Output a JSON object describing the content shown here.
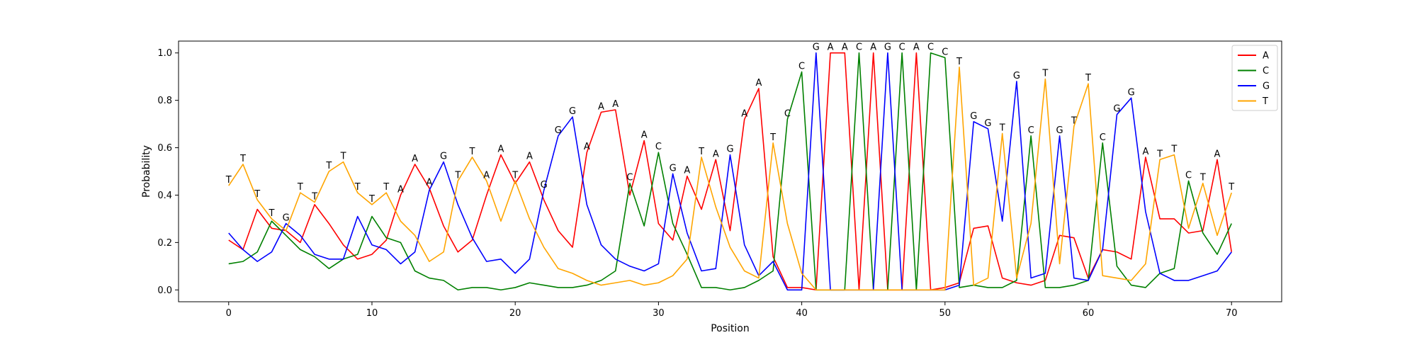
{
  "chart_data": {
    "type": "line",
    "xlabel": "Position",
    "ylabel": "Probability",
    "xlim": [
      -3.5,
      73.5
    ],
    "ylim": [
      -0.05,
      1.05
    ],
    "x_ticks": [
      0,
      10,
      20,
      30,
      40,
      50,
      60,
      70
    ],
    "x_tick_labels": [
      "0",
      "10",
      "20",
      "30",
      "40",
      "50",
      "60",
      "70"
    ],
    "y_ticks": [
      0.0,
      0.2,
      0.4,
      0.6,
      0.8,
      1.0
    ],
    "y_tick_labels": [
      "0.0",
      "0.2",
      "0.4",
      "0.6",
      "0.8",
      "1.0"
    ],
    "grid": false,
    "legend_position": "top-right",
    "x": [
      0,
      1,
      2,
      3,
      4,
      5,
      6,
      7,
      8,
      9,
      10,
      11,
      12,
      13,
      14,
      15,
      16,
      17,
      18,
      19,
      20,
      21,
      22,
      23,
      24,
      25,
      26,
      27,
      28,
      29,
      30,
      31,
      32,
      33,
      34,
      35,
      36,
      37,
      38,
      39,
      40,
      41,
      42,
      43,
      44,
      45,
      46,
      47,
      48,
      49,
      50,
      51,
      52,
      53,
      54,
      55,
      56,
      57,
      58,
      59,
      60,
      61,
      62,
      63,
      64,
      65,
      66,
      67,
      68,
      69,
      70
    ],
    "series": [
      {
        "name": "A",
        "color": "#ff0000",
        "values": [
          0.21,
          0.17,
          0.34,
          0.26,
          0.25,
          0.2,
          0.36,
          0.28,
          0.19,
          0.13,
          0.15,
          0.21,
          0.4,
          0.53,
          0.43,
          0.27,
          0.16,
          0.21,
          0.4,
          0.57,
          0.45,
          0.54,
          0.38,
          0.25,
          0.18,
          0.58,
          0.75,
          0.76,
          0.4,
          0.63,
          0.28,
          0.21,
          0.48,
          0.34,
          0.55,
          0.25,
          0.72,
          0.85,
          0.14,
          0.01,
          0.01,
          0.0,
          1.0,
          1.0,
          0.0,
          1.0,
          0.0,
          0.0,
          1.0,
          0.0,
          0.01,
          0.03,
          0.26,
          0.27,
          0.05,
          0.03,
          0.02,
          0.04,
          0.23,
          0.22,
          0.05,
          0.17,
          0.16,
          0.13,
          0.56,
          0.3,
          0.3,
          0.24,
          0.25,
          0.55,
          0.16
        ]
      },
      {
        "name": "C",
        "color": "#008000",
        "values": [
          0.11,
          0.12,
          0.16,
          0.29,
          0.23,
          0.17,
          0.14,
          0.09,
          0.13,
          0.15,
          0.31,
          0.22,
          0.2,
          0.08,
          0.05,
          0.04,
          0.0,
          0.01,
          0.01,
          0.0,
          0.01,
          0.03,
          0.02,
          0.01,
          0.01,
          0.02,
          0.04,
          0.08,
          0.45,
          0.27,
          0.58,
          0.28,
          0.15,
          0.01,
          0.01,
          0.0,
          0.01,
          0.04,
          0.08,
          0.72,
          0.92,
          0.0,
          0.0,
          0.0,
          1.0,
          0.0,
          0.0,
          1.0,
          0.0,
          1.0,
          0.98,
          0.01,
          0.02,
          0.01,
          0.01,
          0.04,
          0.65,
          0.01,
          0.01,
          0.02,
          0.04,
          0.62,
          0.1,
          0.02,
          0.01,
          0.07,
          0.09,
          0.46,
          0.24,
          0.15,
          0.28
        ]
      },
      {
        "name": "G",
        "color": "#0000ff",
        "values": [
          0.24,
          0.17,
          0.12,
          0.16,
          0.28,
          0.23,
          0.15,
          0.13,
          0.13,
          0.31,
          0.19,
          0.17,
          0.11,
          0.16,
          0.42,
          0.54,
          0.36,
          0.22,
          0.12,
          0.13,
          0.07,
          0.13,
          0.42,
          0.65,
          0.73,
          0.36,
          0.19,
          0.13,
          0.1,
          0.08,
          0.11,
          0.49,
          0.24,
          0.08,
          0.09,
          0.57,
          0.19,
          0.06,
          0.12,
          0.0,
          0.0,
          1.0,
          0.0,
          0.0,
          0.0,
          0.0,
          1.0,
          0.0,
          0.0,
          0.0,
          0.0,
          0.02,
          0.71,
          0.68,
          0.29,
          0.88,
          0.05,
          0.07,
          0.65,
          0.05,
          0.04,
          0.17,
          0.74,
          0.81,
          0.33,
          0.07,
          0.04,
          0.04,
          0.06,
          0.08,
          0.16
        ]
      },
      {
        "name": "T",
        "color": "#ffa500",
        "values": [
          0.44,
          0.53,
          0.38,
          0.3,
          0.25,
          0.41,
          0.37,
          0.5,
          0.54,
          0.41,
          0.36,
          0.41,
          0.29,
          0.23,
          0.12,
          0.16,
          0.46,
          0.56,
          0.46,
          0.29,
          0.46,
          0.3,
          0.18,
          0.09,
          0.07,
          0.04,
          0.02,
          0.03,
          0.04,
          0.02,
          0.03,
          0.06,
          0.13,
          0.56,
          0.35,
          0.18,
          0.08,
          0.05,
          0.62,
          0.28,
          0.07,
          0.0,
          0.0,
          0.0,
          0.0,
          0.0,
          0.0,
          0.0,
          0.0,
          0.0,
          0.0,
          0.94,
          0.02,
          0.05,
          0.66,
          0.05,
          0.28,
          0.89,
          0.11,
          0.69,
          0.87,
          0.06,
          0.05,
          0.04,
          0.11,
          0.55,
          0.57,
          0.26,
          0.45,
          0.23,
          0.41
        ]
      }
    ],
    "base_labels": [
      "T",
      "T",
      "T",
      "T",
      "G",
      "T",
      "T",
      "T",
      "T",
      "T",
      "T",
      "T",
      "A",
      "A",
      "A",
      "G",
      "T",
      "T",
      "A",
      "A",
      "T",
      "A",
      "G",
      "G",
      "G",
      "A",
      "A",
      "A",
      "C",
      "A",
      "C",
      "G",
      "A",
      "T",
      "A",
      "G",
      "A",
      "A",
      "T",
      "C",
      "C",
      "G",
      "A",
      "A",
      "C",
      "A",
      "G",
      "C",
      "A",
      "C",
      "C",
      "T",
      "G",
      "G",
      "T",
      "G",
      "C",
      "T",
      "G",
      "T",
      "T",
      "C",
      "G",
      "G",
      "A",
      "T",
      "T",
      "C",
      "T",
      "A",
      "T"
    ],
    "legend": [
      {
        "label": "A",
        "color": "#ff0000"
      },
      {
        "label": "C",
        "color": "#008000"
      },
      {
        "label": "G",
        "color": "#0000ff"
      },
      {
        "label": "T",
        "color": "#ffa500"
      }
    ]
  }
}
